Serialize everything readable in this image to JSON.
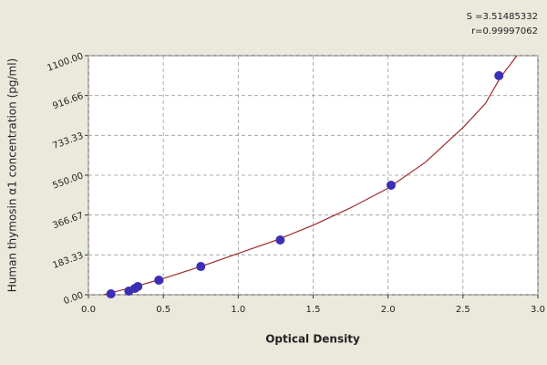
{
  "chart_data": {
    "type": "scatter",
    "x_label": "Optical Density",
    "y_label": "Human thymosin α1 concentration (pg/ml)",
    "annotations": [
      "S =3.51485332",
      "r=0.99997062"
    ],
    "xlim": [
      0,
      3
    ],
    "ylim": [
      0,
      1100
    ],
    "xticks": [
      {
        "value": 0,
        "label": "0.0"
      },
      0.5,
      {
        "value": 1,
        "label": "1.0"
      },
      1.5,
      {
        "value": 2,
        "label": "2.0"
      },
      2.5,
      {
        "value": 3,
        "label": "3.0"
      }
    ],
    "yticks": [
      {
        "value": 0,
        "label": "0.00"
      },
      {
        "value": 183.33,
        "label": "183.33"
      },
      {
        "value": 366.67,
        "label": "366.67"
      },
      {
        "value": 550,
        "label": "550.00"
      },
      {
        "value": 733.33,
        "label": "733.33"
      },
      {
        "value": 916.66,
        "label": "916.66"
      },
      {
        "value": 1100,
        "label": "1100.00"
      }
    ],
    "grid": true,
    "series": [
      {
        "color": "#3a2fb5",
        "x": [
          0.15,
          0.27,
          0.31,
          0.33,
          0.47,
          0.75,
          1.28,
          2.02,
          2.74
        ],
        "values": [
          4,
          17,
          29,
          38,
          67,
          130,
          252,
          504,
          1008
        ]
      },
      {
        "type": "line",
        "color": "#a0282a",
        "x": [
          0.1,
          0.3,
          0.5,
          0.75,
          1.0,
          1.25,
          1.5,
          1.75,
          2.0,
          2.25,
          2.5,
          2.65,
          2.75,
          2.86
        ],
        "values": [
          0,
          35,
          75,
          130,
          190,
          250,
          320,
          400,
          490,
          610,
          769,
          880,
          1000,
          1100
        ]
      }
    ]
  }
}
